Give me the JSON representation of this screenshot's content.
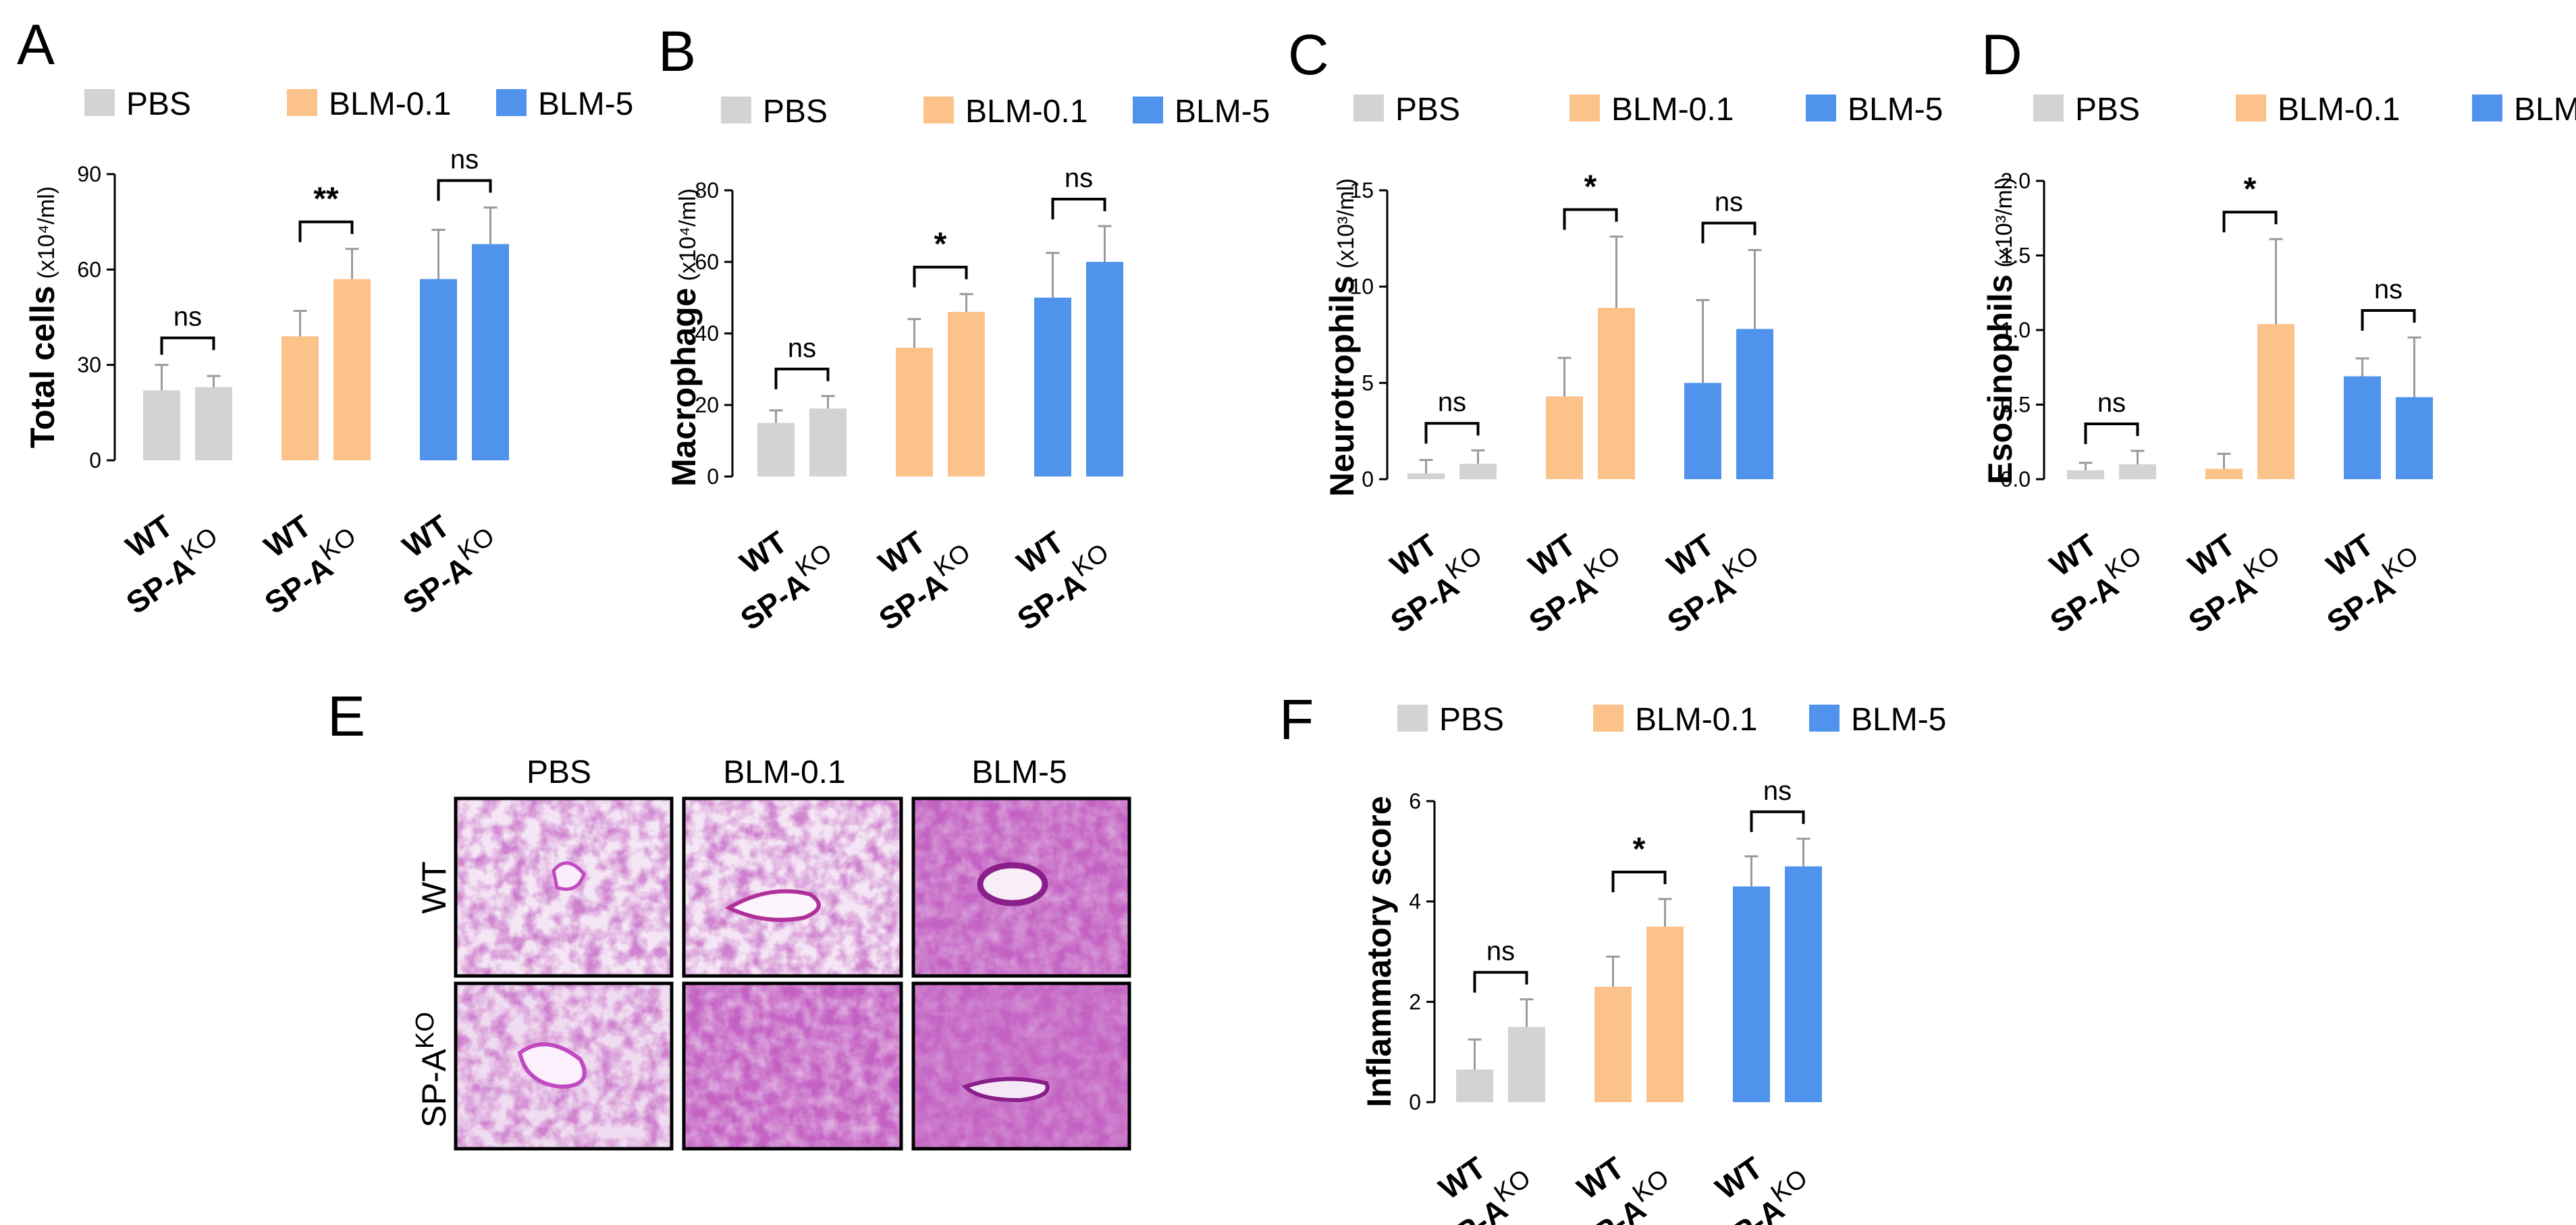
{
  "colors": {
    "PBS": "#d3d3d3",
    "BLM-0.1": "#fbc28a",
    "BLM-5": "#4f93ec",
    "errorbar": "#9a9a9a"
  },
  "legend": [
    "PBS",
    "BLM-0.1",
    "BLM-5"
  ],
  "x_tick_labels": {
    "wt": "WT",
    "ko_base": "SP-A",
    "ko_sup": "KO"
  },
  "chart_data": [
    {
      "panel": "A",
      "type": "bar",
      "ylabel": "Total cells",
      "yunit": "(x10⁴/ml)",
      "ylim": [
        0,
        90
      ],
      "yticks": [
        "0",
        "30",
        "60",
        "90"
      ],
      "groups": [
        "PBS",
        "BLM-0.1",
        "BLM-5"
      ],
      "categories": [
        "WT",
        "SP-A KO"
      ],
      "series": [
        {
          "group": "PBS",
          "values": [
            22,
            23
          ],
          "errors": [
            8,
            3.5
          ]
        },
        {
          "group": "BLM-0.1",
          "values": [
            39,
            57
          ],
          "errors": [
            8,
            9.5
          ]
        },
        {
          "group": "BLM-5",
          "values": [
            57,
            68
          ],
          "errors": [
            15.5,
            11.5
          ]
        }
      ],
      "significance": [
        "ns",
        "**",
        "ns"
      ]
    },
    {
      "panel": "B",
      "type": "bar",
      "ylabel": "Macrophage",
      "yunit": "(x10⁴/ml)",
      "ylim": [
        0,
        80
      ],
      "yticks": [
        "0",
        "20",
        "40",
        "60",
        "80"
      ],
      "groups": [
        "PBS",
        "BLM-0.1",
        "BLM-5"
      ],
      "categories": [
        "WT",
        "SP-A KO"
      ],
      "series": [
        {
          "group": "PBS",
          "values": [
            15,
            19
          ],
          "errors": [
            3.5,
            3.5
          ]
        },
        {
          "group": "BLM-0.1",
          "values": [
            36,
            46
          ],
          "errors": [
            8,
            5
          ]
        },
        {
          "group": "BLM-5",
          "values": [
            50,
            60
          ],
          "errors": [
            12.5,
            10
          ]
        }
      ],
      "significance": [
        "ns",
        "*",
        "ns"
      ]
    },
    {
      "panel": "C",
      "type": "bar",
      "ylabel": "Neurotrophils",
      "yunit": "(x10³/ml)",
      "ylim": [
        0,
        15
      ],
      "yticks": [
        "0",
        "5",
        "10",
        "15"
      ],
      "groups": [
        "PBS",
        "BLM-0.1",
        "BLM-5"
      ],
      "categories": [
        "WT",
        "SP-A KO"
      ],
      "series": [
        {
          "group": "PBS",
          "values": [
            0.3,
            0.8
          ],
          "errors": [
            0.7,
            0.7
          ]
        },
        {
          "group": "BLM-0.1",
          "values": [
            4.3,
            8.9
          ],
          "errors": [
            2.0,
            3.7
          ]
        },
        {
          "group": "BLM-5",
          "values": [
            5.0,
            7.8
          ],
          "errors": [
            4.3,
            4.1
          ]
        }
      ],
      "significance": [
        "ns",
        "*",
        "ns"
      ]
    },
    {
      "panel": "D",
      "type": "bar",
      "ylabel": "Esosinophils",
      "yunit": "(x10³/ml)",
      "ylim": [
        0,
        2.0
      ],
      "yticks": [
        "0.0",
        "0.5",
        "1.0",
        "1.5",
        "2.0"
      ],
      "groups": [
        "PBS",
        "BLM-0.1",
        "BLM-5"
      ],
      "categories": [
        "WT",
        "SP-A KO"
      ],
      "series": [
        {
          "group": "PBS",
          "values": [
            0.06,
            0.1
          ],
          "errors": [
            0.05,
            0.09
          ]
        },
        {
          "group": "BLM-0.1",
          "values": [
            0.07,
            1.04
          ],
          "errors": [
            0.1,
            0.57
          ]
        },
        {
          "group": "BLM-5",
          "values": [
            0.69,
            0.55
          ],
          "errors": [
            0.12,
            0.4
          ]
        }
      ],
      "significance": [
        "ns",
        "*",
        "ns"
      ]
    },
    {
      "panel": "F",
      "type": "bar",
      "ylabel": "Inflammatory score",
      "yunit": "",
      "ylim": [
        0,
        6
      ],
      "yticks": [
        "0",
        "2",
        "4",
        "6"
      ],
      "groups": [
        "PBS",
        "BLM-0.1",
        "BLM-5"
      ],
      "categories": [
        "WT",
        "SP-A KO"
      ],
      "series": [
        {
          "group": "PBS",
          "values": [
            0.65,
            1.5
          ],
          "errors": [
            0.6,
            0.55
          ]
        },
        {
          "group": "BLM-0.1",
          "values": [
            2.3,
            3.5
          ],
          "errors": [
            0.6,
            0.55
          ]
        },
        {
          "group": "BLM-5",
          "values": [
            4.3,
            4.7
          ],
          "errors": [
            0.6,
            0.55
          ]
        }
      ],
      "significance": [
        "ns",
        "*",
        "ns"
      ]
    }
  ],
  "histology": {
    "panel": "E",
    "columns": [
      "PBS",
      "BLM-0.1",
      "BLM-5"
    ],
    "rows": [
      {
        "base": "WT",
        "sup": ""
      },
      {
        "base": "SP-A",
        "sup": "KO"
      }
    ]
  }
}
